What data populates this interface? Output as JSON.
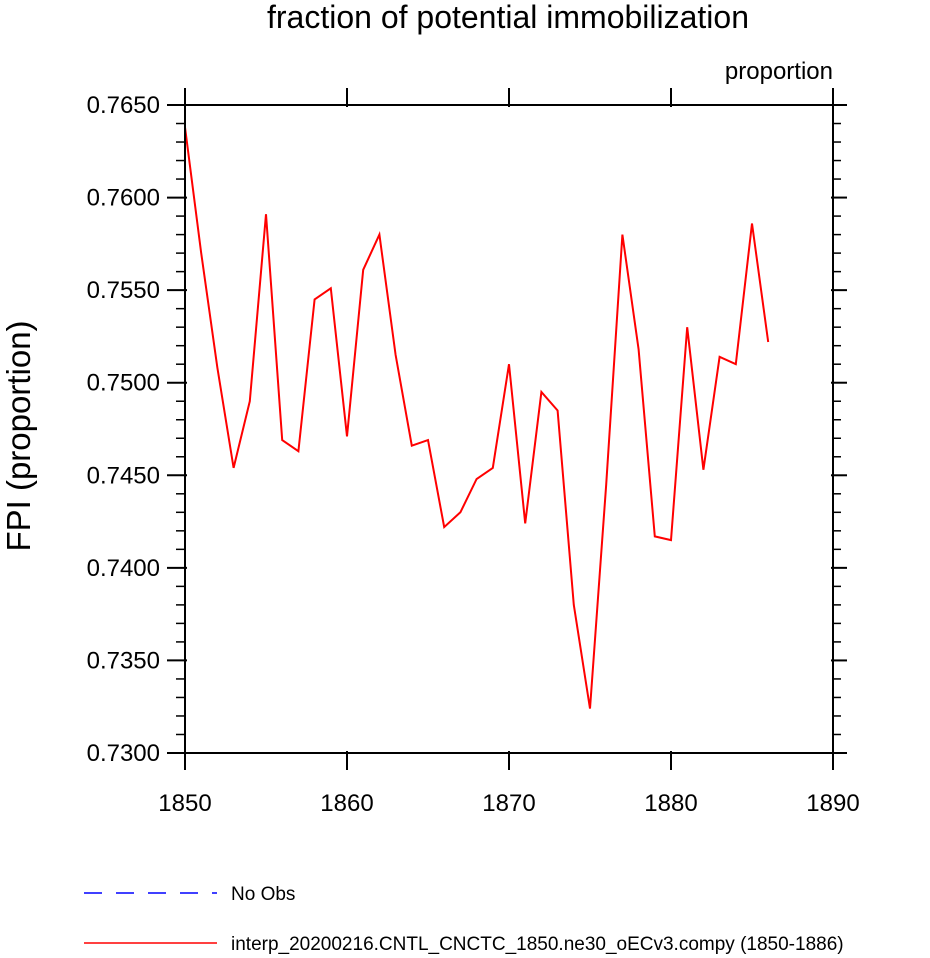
{
  "chart_data": {
    "type": "line",
    "title": "fraction of potential immobilization",
    "units_label": "proportion",
    "ylabel": "FPI  (proportion)",
    "xlabel": "",
    "xlim": [
      1850,
      1890
    ],
    "ylim": [
      0.73,
      0.765
    ],
    "x_ticks": [
      1850,
      1860,
      1870,
      1880,
      1890
    ],
    "x_tick_labels": [
      "1850",
      "1860",
      "1870",
      "1880",
      "1890"
    ],
    "y_ticks": [
      0.73,
      0.735,
      0.74,
      0.745,
      0.75,
      0.755,
      0.76,
      0.765
    ],
    "y_tick_labels": [
      "0.7300",
      "0.7350",
      "0.7400",
      "0.7450",
      "0.7500",
      "0.7550",
      "0.7600",
      "0.7650"
    ],
    "grid": false,
    "legend_position": "bottom",
    "series": [
      {
        "name": "interp_20200216.CNTL_CNCTC_1850.ne30_oECv3.compy (1850-1886)",
        "color": "#ff0000",
        "dash": "solid",
        "x": [
          1850,
          1851,
          1852,
          1853,
          1854,
          1855,
          1856,
          1857,
          1858,
          1859,
          1860,
          1861,
          1862,
          1863,
          1864,
          1865,
          1866,
          1867,
          1868,
          1869,
          1870,
          1871,
          1872,
          1873,
          1874,
          1875,
          1876,
          1877,
          1878,
          1879,
          1880,
          1881,
          1882,
          1883,
          1884,
          1885,
          1886
        ],
        "y": [
          0.7638,
          0.757,
          0.7508,
          0.7454,
          0.749,
          0.7591,
          0.7469,
          0.7463,
          0.7545,
          0.7551,
          0.7471,
          0.7561,
          0.758,
          0.7515,
          0.7466,
          0.7469,
          0.7422,
          0.743,
          0.7448,
          0.7454,
          0.751,
          0.7424,
          0.7495,
          0.7485,
          0.738,
          0.7324,
          0.7445,
          0.758,
          0.7518,
          0.7417,
          0.7415,
          0.753,
          0.7453,
          0.7514,
          0.751,
          0.7586,
          0.7522
        ]
      },
      {
        "name": "No Obs",
        "color": "#0000ff",
        "dash": "dashed",
        "x": [],
        "y": []
      }
    ],
    "legend": [
      {
        "label": "No Obs",
        "color": "#0000ff",
        "dash": "dashed"
      },
      {
        "label": "interp_20200216.CNTL_CNCTC_1850.ne30_oECv3.compy (1850-1886)",
        "color": "#ff0000",
        "dash": "solid"
      }
    ]
  }
}
